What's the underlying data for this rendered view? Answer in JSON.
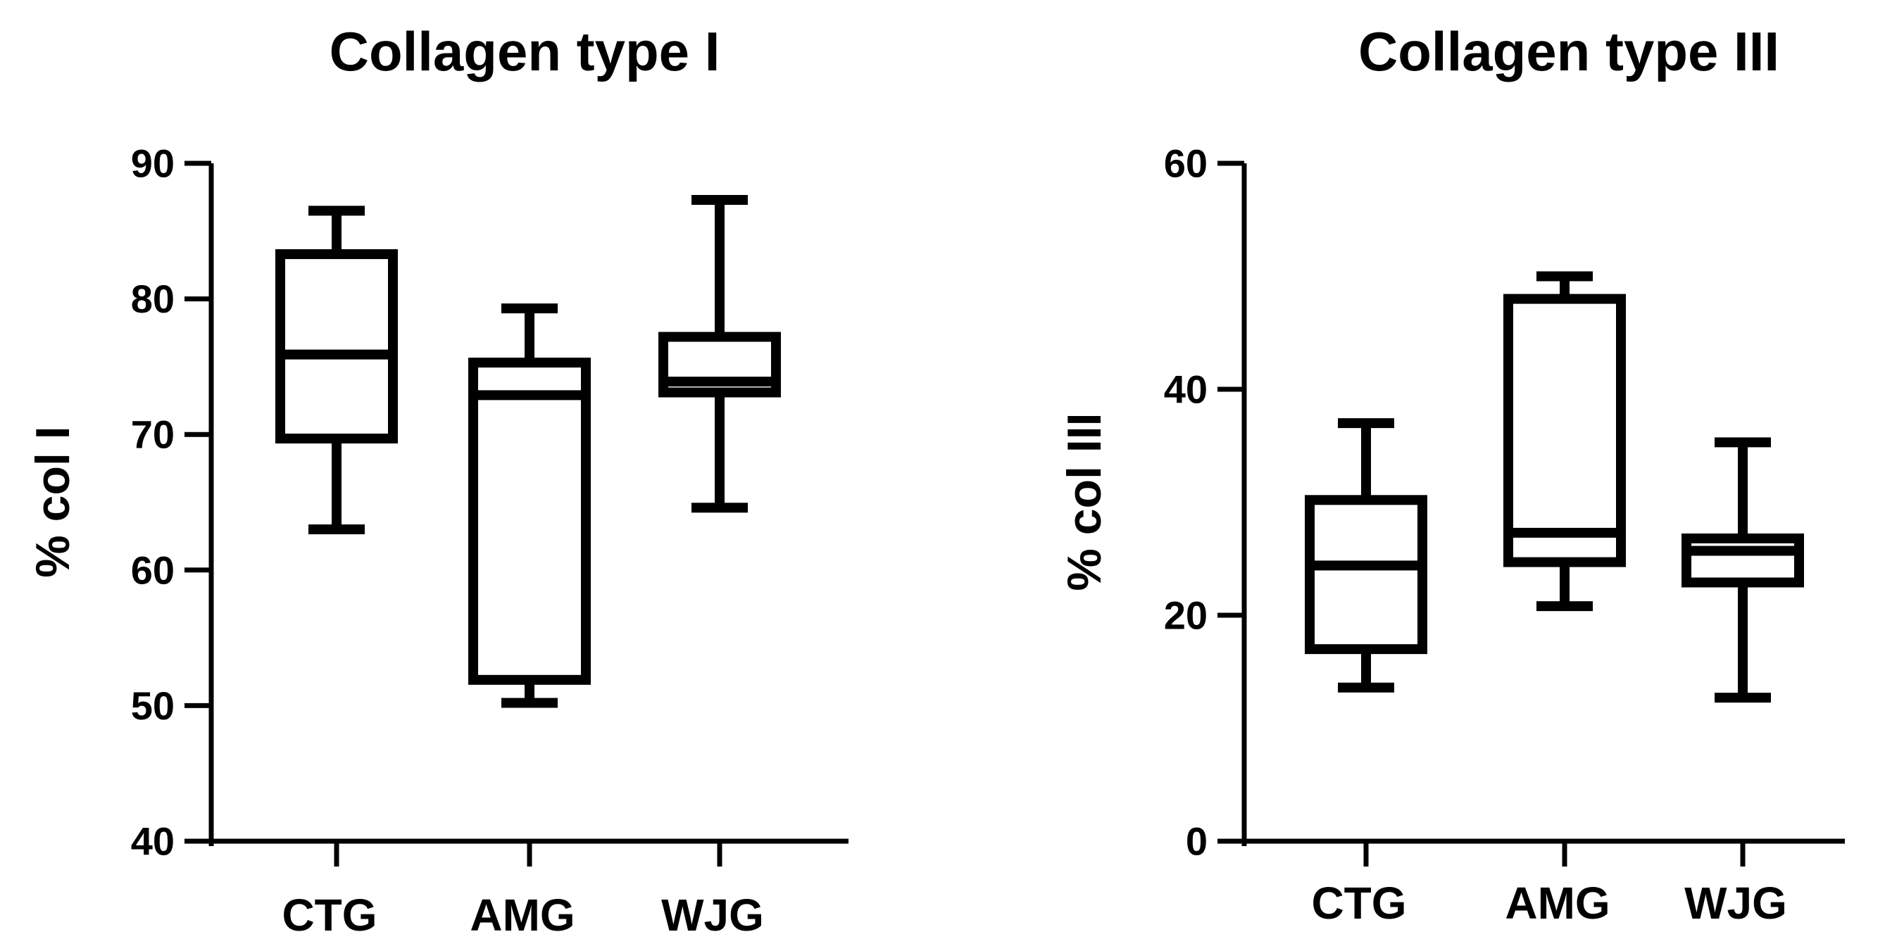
{
  "chart_data": [
    {
      "type": "box",
      "title": "Collagen type I",
      "ylabel": "% col I",
      "xlabel": "",
      "ylim": [
        40,
        90
      ],
      "yticks": [
        40,
        50,
        60,
        70,
        80,
        90
      ],
      "categories": [
        "CTG",
        "AMG",
        "WJG"
      ],
      "boxes": [
        {
          "category": "CTG",
          "min": 63.0,
          "q1": 69.7,
          "median": 75.9,
          "q3": 83.3,
          "max": 86.5
        },
        {
          "category": "AMG",
          "min": 50.2,
          "q1": 51.9,
          "median": 72.9,
          "q3": 75.3,
          "max": 79.3
        },
        {
          "category": "WJG",
          "min": 64.6,
          "q1": 73.1,
          "median": 73.9,
          "q3": 77.2,
          "max": 87.3
        }
      ],
      "grid": false
    },
    {
      "type": "box",
      "title": "Collagen type III",
      "ylabel": "% col III",
      "xlabel": "",
      "ylim": [
        0,
        60
      ],
      "yticks": [
        0,
        20,
        40,
        60
      ],
      "categories": [
        "CTG",
        "AMG",
        "WJG"
      ],
      "boxes": [
        {
          "category": "CTG",
          "min": 13.6,
          "q1": 17.0,
          "median": 24.4,
          "q3": 30.2,
          "max": 37.0
        },
        {
          "category": "AMG",
          "min": 20.8,
          "q1": 24.7,
          "median": 27.3,
          "q3": 48.0,
          "max": 50.0
        },
        {
          "category": "WJG",
          "min": 12.7,
          "q1": 22.9,
          "median": 25.7,
          "q3": 26.8,
          "max": 35.3
        }
      ],
      "grid": false
    }
  ]
}
